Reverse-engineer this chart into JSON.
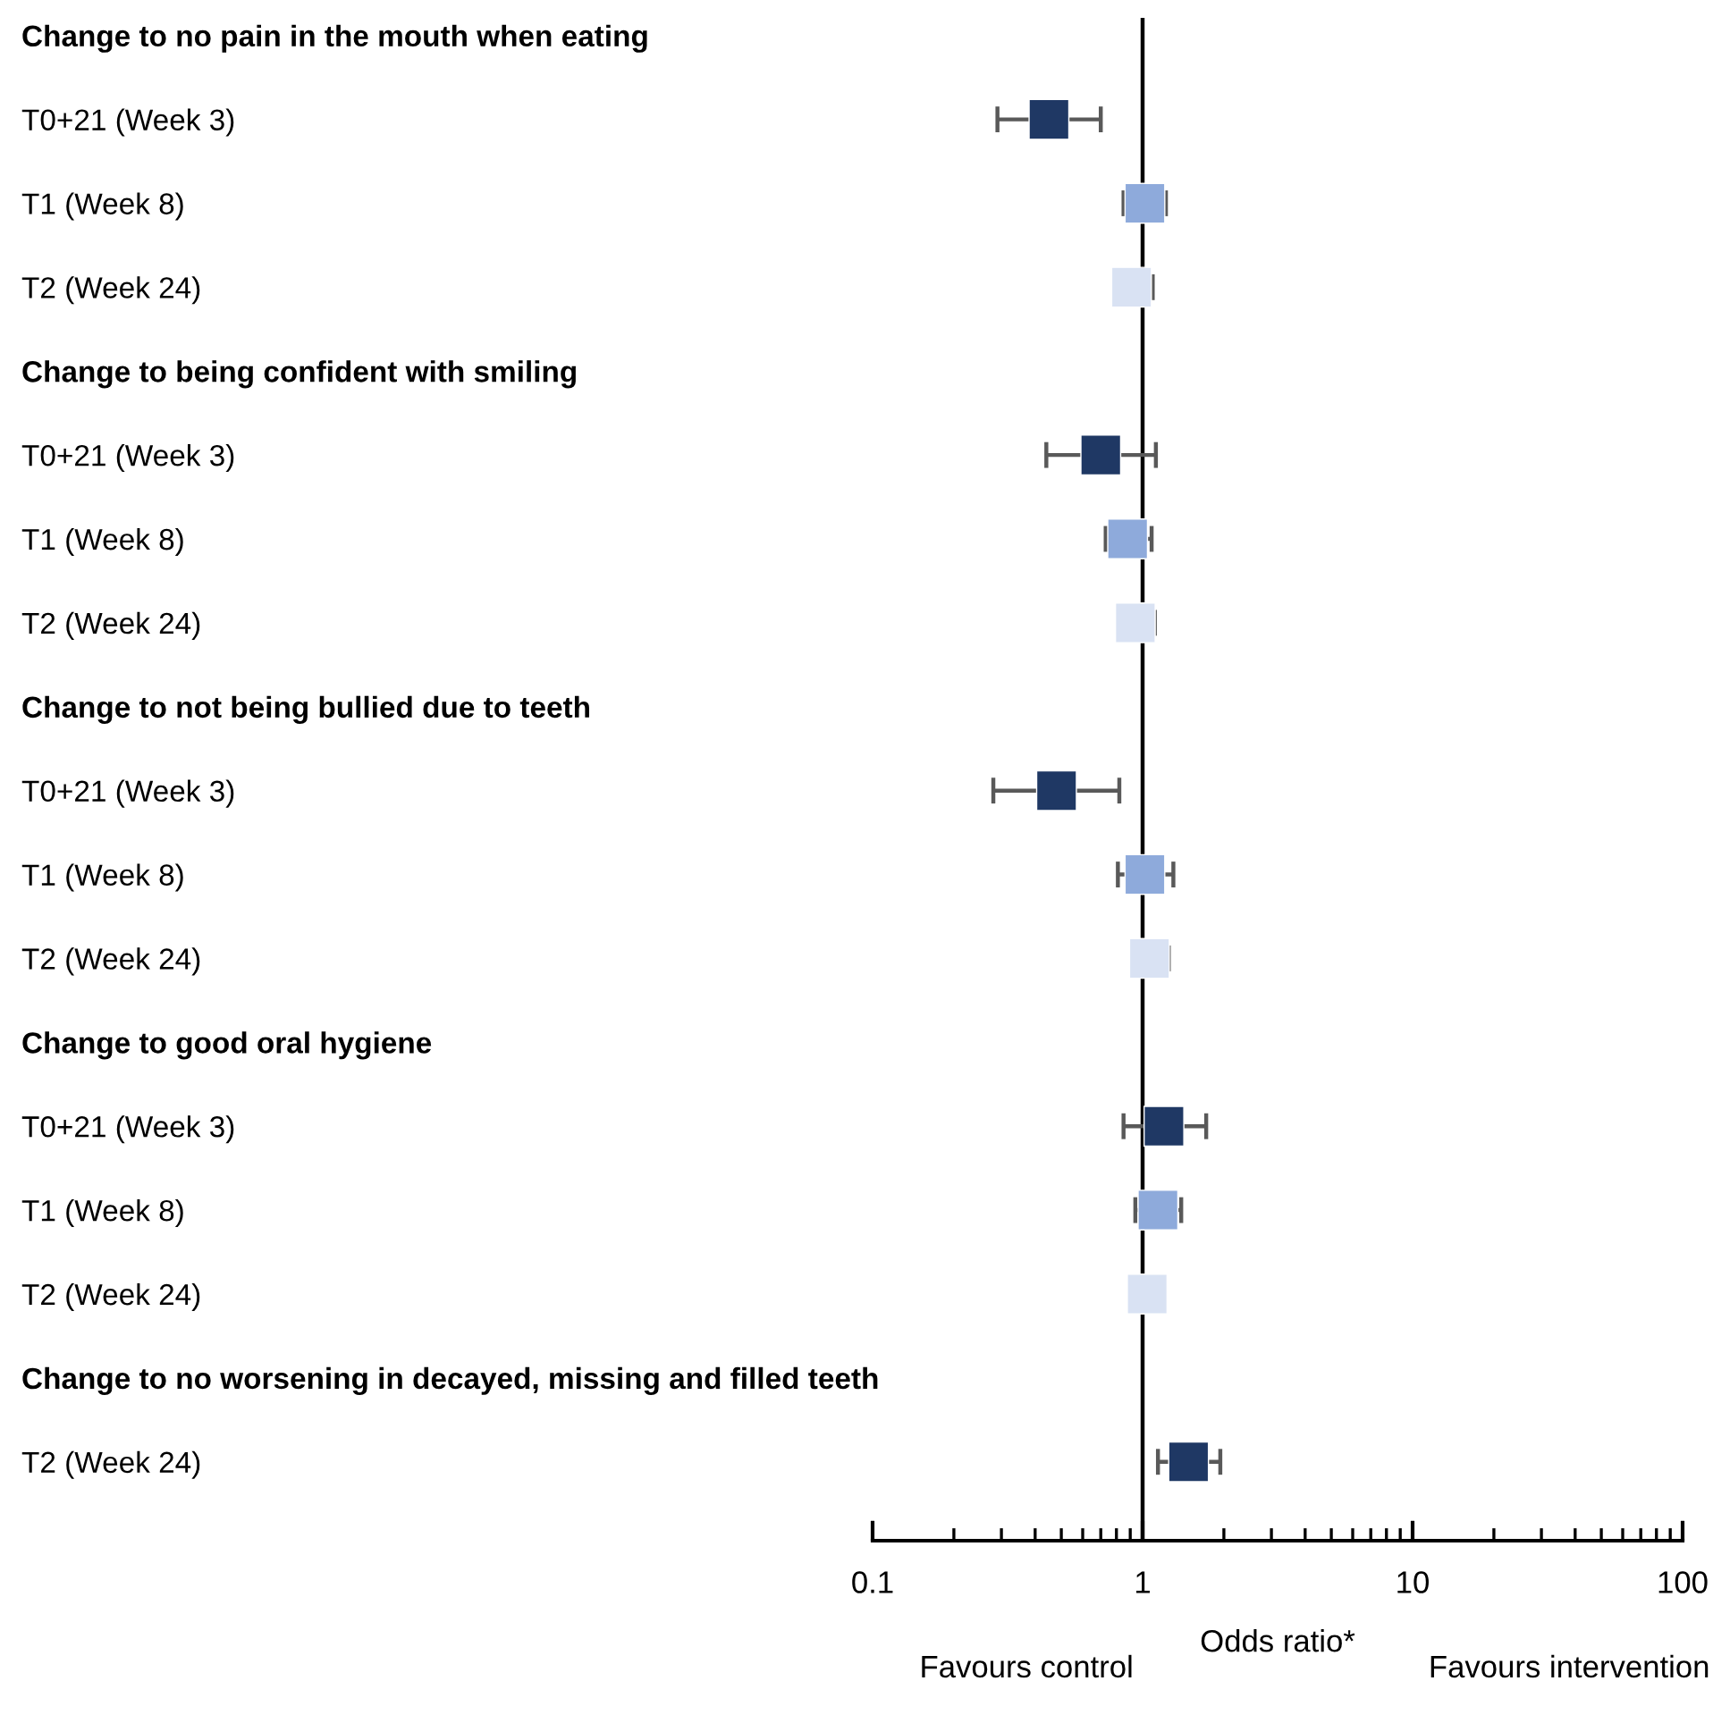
{
  "chart_data": {
    "type": "scatter",
    "orientation": "horizontal",
    "log": "x",
    "marker": "square",
    "grid": false,
    "legend": false,
    "categories": [
      "Change to no pain in the mouth when eating",
      "T0+21 (Week 3)",
      "T1 (Week 8)",
      "T2 (Week 24)",
      "Change to being confident with smiling",
      "T0+21 (Week 3)",
      "T1 (Week 8)",
      "T2 (Week 24)",
      "Change to not being bullied due to teeth",
      "T0+21 (Week 3)",
      "T1 (Week 8)",
      "T2 (Week 24)",
      "Change to good oral hygiene",
      "T0+21 (Week 3)",
      "T1 (Week 8)",
      "T2 (Week 24)",
      "Change to no worsening in decayed, missing and filled teeth",
      "T2 (Week 24)"
    ],
    "series": [
      {
        "values": [
          null,
          0.45,
          1.02,
          0.91,
          null,
          0.7,
          0.88,
          0.94,
          null,
          0.48,
          1.02,
          1.06,
          null,
          1.2,
          1.14,
          1.04,
          null,
          1.48
        ],
        "colors": [
          null,
          "#1f3864",
          "#8eaadb",
          "#d9e2f3",
          null,
          "#1f3864",
          "#8eaadb",
          "#d9e2f3",
          null,
          "#1f3864",
          "#8eaadb",
          "#d9e2f3",
          null,
          "#1f3864",
          "#8eaadb",
          "#d9e2f3",
          null,
          "#1f3864"
        ],
        "errors": [
          null,
          [
            0.29,
            0.7
          ],
          [
            0.85,
            1.22
          ],
          [
            0.8,
            1.09
          ],
          null,
          [
            0.44,
            1.12
          ],
          [
            0.73,
            1.08
          ],
          [
            0.82,
            1.11
          ],
          null,
          [
            0.28,
            0.82
          ],
          [
            0.81,
            1.3
          ],
          [
            0.93,
            1.25
          ],
          null,
          [
            0.85,
            1.72
          ],
          [
            0.94,
            1.39
          ],
          null,
          null,
          [
            1.14,
            1.94
          ]
        ]
      }
    ],
    "xlim": [
      0.1,
      100
    ],
    "xticks": [
      0.1,
      1,
      10,
      100
    ],
    "xlabel": "Odds ratio*",
    "ref_lines": [
      {
        "axis": "x",
        "value": 1,
        "color": "#000000"
      }
    ],
    "annotations": [
      "Favours control",
      "Favours intervention"
    ]
  }
}
